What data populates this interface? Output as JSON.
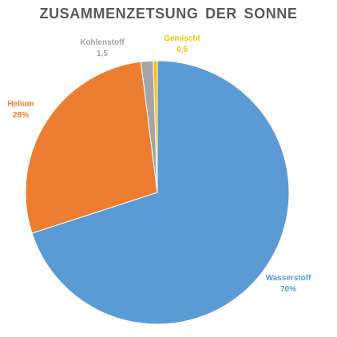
{
  "chart_data": {
    "type": "pie",
    "title": "ZUSAMMENZETSUNG DER SONNE",
    "start": "top",
    "direction": "clockwise",
    "slices": [
      {
        "label": "Wasserstoff",
        "value": 70,
        "value_text": "70%",
        "color": "#5B9BD5"
      },
      {
        "label": "Helium",
        "value": 28,
        "value_text": "28%",
        "color": "#ED7D31"
      },
      {
        "label": "Kohlenstoff",
        "value": 1.5,
        "value_text": "1,5",
        "color": "#A5A5A5"
      },
      {
        "label": "Gemischt",
        "value": 0.5,
        "value_text": "0,5",
        "color": "#FFC000"
      }
    ]
  }
}
